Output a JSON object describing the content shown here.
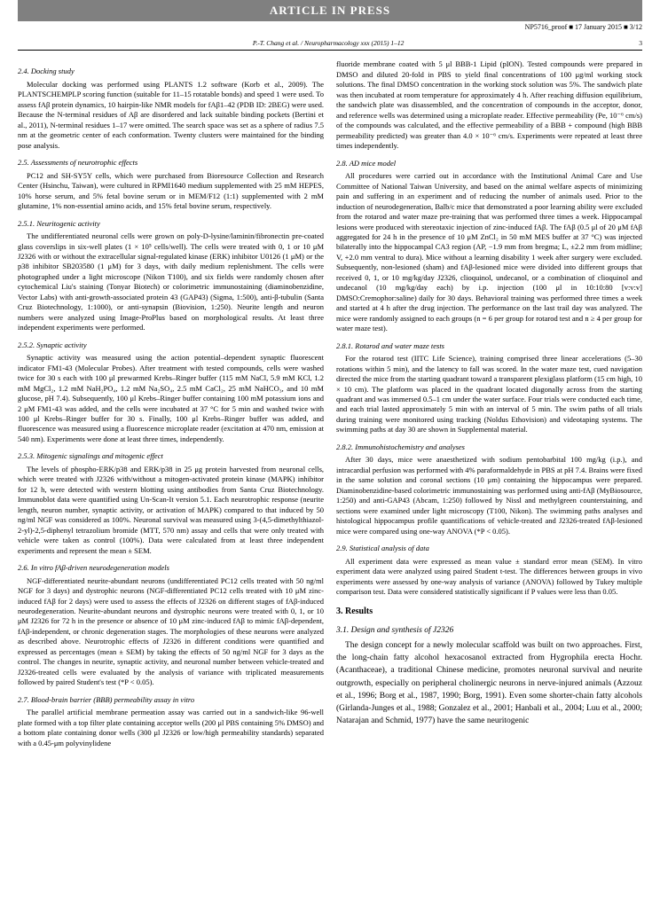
{
  "press": "ARTICLE IN PRESS",
  "proof": "NP5716_proof ■ 17 January 2015 ■ 3/12",
  "hdr": "P.-T. Chang et al. / Neuropharmacology xxx (2015) 1–12",
  "pg": "3",
  "s24t": "2.4. Docking study",
  "s24": "Molecular docking was performed using PLANTS 1.2 software (Korb et al., 2009). The PLANTSCHEMPLP scoring function (suitable for 11–15 rotatable bonds) and speed 1 were used. To assess fAβ protein dynamics, 10 hairpin-like NMR models for fAβ1–42 (PDB ID: 2BEG) were used. Because the N-terminal residues of Aβ are disordered and lack suitable binding pockets (Bertini et al., 2011), N-terminal residues 1–17 were omitted. The search space was set as a sphere of radius 7.5 nm at the geometric center of each conformation. Twenty clusters were maintained for the binding pose analysis.",
  "s25t": "2.5. Assessments of neurotrophic effects",
  "s25": "PC12 and SH-SY5Y cells, which were purchased from Bioresource Collection and Research Center (Hsinchu, Taiwan), were cultured in RPMI1640 medium supplemented with 25 mM HEPES, 10% horse serum, and 5% fetal bovine serum or in MEM/F12 (1:1) supplemented with 2 mM glutamine, 1% non-essential amino acids, and 15% fetal bovine serum, respectively.",
  "s251t": "2.5.1. Neuritogenic activity",
  "s251": "The undifferentiated neuronal cells were grown on poly-D-lysine/laminin/fibronectin pre-coated glass coverslips in six-well plates (1 × 10⁵ cells/well). The cells were treated with 0, 1 or 10 μM J2326 with or without the extracellular signal-regulated kinase (ERK) inhibitor U0126 (1 μM) or the p38 inhibitor SB203580 (1 μM) for 3 days, with daily medium replenishment. The cells were photographed under a light microscope (Nikon T100), and six fields were randomly chosen after cytochemical Liu's staining (Tonyar Biotech) or colorimetric immunostaining (diaminobenzidine, Vector Labs) with anti-growth-associated protein 43 (GAP43) (Sigma, 1:500), anti-β-tubulin (Santa Cruz Biotechnology, 1:1000), or anti-synapsin (Biovision, 1:250). Neurite length and neuron numbers were analyzed using Image-ProPlus based on morphological results. At least three independent experiments were performed.",
  "s252t": "2.5.2. Synaptic activity",
  "s252": "Synaptic activity was measured using the action potential–dependent synaptic fluorescent indicator FM1-43 (Molecular Probes). After treatment with tested compounds, cells were washed twice for 30 s each with 100 μl prewarmed Krebs–Ringer buffer (115 mM NaCl, 5.9 mM KCl, 1.2 mM MgCl₂, 1.2 mM NaH₂PO₄, 1.2 mM Na₂SO₄, 2.5 mM CaCl₂, 25 mM NaHCO₃, and 10 mM glucose, pH 7.4). Subsequently, 100 μl Krebs–Ringer buffer containing 100 mM potassium ions and 2 μM FM1-43 was added, and the cells were incubated at 37 °C for 5 min and washed twice with 100 μl Krebs–Ringer buffer for 30 s. Finally, 100 μl Krebs–Ringer buffer was added, and fluorescence was measured using a fluorescence microplate reader (excitation at 470 nm, emission at 540 nm). Experiments were done at least three times, independently.",
  "s253t": "2.5.3. Mitogenic signalings and mitogenic effect",
  "s253": "The levels of phospho-ERK/p38 and ERK/p38 in 25 μg protein harvested from neuronal cells, which were treated with J2326 with/without a mitogen-activated protein kinase (MAPK) inhibitor for 12 h, were detected with western blotting using antibodies from Santa Cruz Biotechnology. Immunoblot data were quantified using Un-Scan-It version 5.1. Each neurotrophic response (neurite length, neuron number, synaptic activity, or activation of MAPK) compared to that induced by 50 ng/ml NGF was considered as 100%. Neuronal survival was measured using 3-(4,5-dimethylthiazol-2-yl)-2,5-diphenyl tetrazolium bromide (MTT, 570 nm) assay and cells that were only treated with vehicle were taken as control (100%). Data were calculated from at least three independent experiments and represent the mean ± SEM.",
  "s26t": "2.6. In vitro fAβ-driven neurodegeneration models",
  "s26": "NGF-differentiated neurite-abundant neurons (undifferentiated PC12 cells treated with 50 ng/ml NGF for 3 days) and dystrophic neurons (NGF-differentiated PC12 cells treated with 10 μM zinc-induced fAβ for 2 days) were used to assess the effects of J2326 on different stages of fAβ-induced neurodegeneration. Neurite-abundant neurons and dystrophic neurons were treated with 0, 1, or 10 μM J2326 for 72 h in the presence or absence of 10 μM zinc-induced fAβ to mimic fAβ-dependent, fAβ-independent, or chronic degeneration stages. The morphologies of these neurons were analyzed as described above. Neurotrophic effects of J2326 in different conditions were quantified and expressed as percentages (mean ± SEM) by taking the effects of 50 ng/ml NGF for 3 days as the control. The changes in neurite, synaptic activity, and neuronal number between vehicle-treated and J2326-treated cells were evaluated by the analysis of variance with triplicated measurements followed by paired Student's test (*P < 0.05).",
  "s27t": "2.7. Blood-brain barrier (BBB) permeability assay in vitro",
  "s27": "The parallel artificial membrane permeation assay was carried out in a sandwich-like 96-well plate formed with a top filter plate containing acceptor wells (200 μl PBS containing 5% DMSO) and a bottom plate containing donor wells (300 μl J2326 or low/high permeability standards) separated with a 0.45-μm polyvinylidene",
  "s27b": "fluoride membrane coated with 5 μl BBB-1 Lipid (pION). Tested compounds were prepared in DMSO and diluted 20-fold in PBS to yield final concentrations of 100 μg/ml working stock solutions. The final DMSO concentration in the working stock solution was 5%. The sandwich plate was then incubated at room temperature for approximately 4 h. After reaching diffusion equilibrium, the sandwich plate was disassembled, and the concentration of compounds in the acceptor, donor, and reference wells was determined using a microplate reader. Effective permeability (Pe, 10⁻⁶ cm/s) of the compounds was calculated, and the effective permeability of a BBB + compound (high BBB permeability predicted) was greater than 4.0 × 10⁻⁶ cm/s. Experiments were repeated at least three times independently.",
  "s28t": "2.8. AD mice model",
  "s28": "All procedures were carried out in accordance with the Institutional Animal Care and Use Committee of National Taiwan University, and based on the animal welfare aspects of minimizing pain and suffering in an experiment and of reducing the number of animals used. Prior to the induction of neurodegeneration, Balb/c mice that demonstrated a poor learning ability were excluded from the rotarod and water maze pre-training that was performed three times a week. Hippocampal lesions were produced with stereotaxic injection of zinc-induced fAβ. The fAβ (0.5 μl of 20 μM fAβ aggregated for 24 h in the presence of 10 μM ZnCl₂ in 50 mM MES buffer at 37 °C) was injected bilaterally into the hippocampal CA3 region (AP, −1.9 mm from bregma; L, ±2.2 mm from midline; V, +2.0 mm ventral to dura). Mice without a learning disability 1 week after surgery were excluded. Subsequently, non-lesioned (sham) and fAβ-lesioned mice were divided into different groups that received 0, 1, or 10 mg/kg/day J2326, clioquinol, undecanol, or a combination of clioquinol and undecanol (10 mg/kg/day each) by i.p. injection (100 μl in 10:10:80 [v:v:v] DMSO:Cremophor:saline) daily for 30 days. Behavioral training was performed three times a week and started at 4 h after the drug injection. The performance on the last trail day was analyzed. The mice were randomly assigned to each groups (n = 6 per group for rotarod test and n ≥ 4 per group for water maze test).",
  "s281t": "2.8.1. Rotarod and water maze tests",
  "s281": "For the rotarod test (IITC Life Science), training comprised three linear accelerations (5–30 rotations within 5 min), and the latency to fall was scored. In the water maze test, cued navigation directed the mice from the starting quadrant toward a transparent plexiglass platform (15 cm high, 10 × 10 cm). The platform was placed in the quadrant located diagonally across from the starting quadrant and was immersed 0.5–1 cm under the water surface. Four trials were conducted each time, and each trial lasted approximately 5 min with an interval of 5 min. The swim paths of all trials during training were monitored using tracking (Noldus Ethovision) and videotaping systems. The swimming paths at day 30 are shown in Supplemental material.",
  "s282t": "2.8.2. Immunohistochemistry and analyses",
  "s282": "After 30 days, mice were anaesthetized with sodium pentobarbital 100 mg/kg (i.p.), and intracardial perfusion was performed with 4% paraformaldehyde in PBS at pH 7.4. Brains were fixed in the same solution and coronal sections (10 μm) containing the hippocampus were prepared. Diaminobenzidine-based colorimetric immunostaining was performed using anti-fAβ (MyBiosource, 1:250) and anti-GAP43 (Abcam, 1:250) followed by Nissl and methylgreen counterstaining, and sections were examined under light microscopy (T100, Nikon). The swimming paths analyses and histological hippocampus profile quantifications of vehicle-treated and J2326-treated fAβ-lesioned mice were compared using one-way ANOVA (*P < 0.05).",
  "s29t": "2.9. Statistical analysis of data",
  "s29": "All experiment data were expressed as mean value ± standard error mean (SEM). In vitro experiment data were analyzed using paired Student t-test. The differences between groups in vivo experiments were assessed by one-way analysis of variance (ANOVA) followed by Tukey multiple comparison test. Data were considered statistically significant if P values were less than 0.05.",
  "s3t": "3. Results",
  "s31t": "3.1. Design and synthesis of J2326",
  "s31": "The design concept for a newly molecular scaffold was built on two approaches. First, the long-chain fatty alcohol hexacosanol extracted from Hygrophila erecta Hochr. (Acanthaceae), a traditional Chinese medicine, promotes neuronal survival and neurite outgrowth, especially on peripheral cholinergic neurons in nerve-injured animals (Azzouz et al., 1996; Borg et al., 1987, 1990; Borg, 1991). Even some shorter-chain fatty alcohols (Girlanda-Junges et al., 1988; Gonzalez et al., 2001; Hanbali et al., 2004; Luu et al., 2000; Natarajan and Schmid, 1977) have the same neuritogenic"
}
